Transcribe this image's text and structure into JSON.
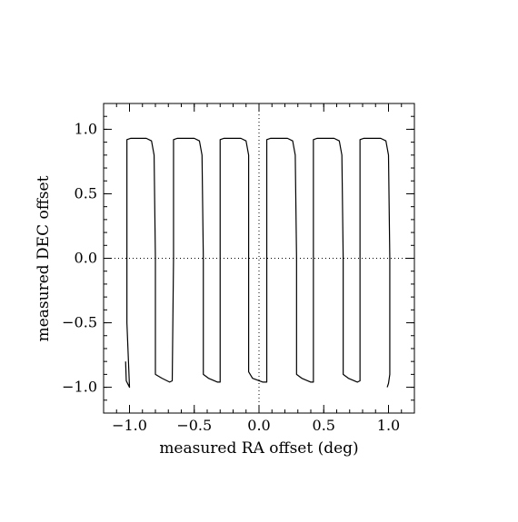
{
  "chart_data": {
    "type": "line",
    "title": "",
    "xlabel": "measured RA offset (deg)",
    "ylabel": "measured DEC offset",
    "xlim": [
      -1.2,
      1.2
    ],
    "ylim": [
      -1.2,
      1.2
    ],
    "x_ticks": [
      -1.0,
      -0.5,
      0.0,
      0.5,
      1.0
    ],
    "x_tick_labels": [
      "−1.0",
      "−0.5",
      "0.0",
      "0.5",
      "1.0"
    ],
    "y_ticks": [
      -1.0,
      -0.5,
      0.0,
      0.5,
      1.0
    ],
    "y_tick_labels": [
      "−1.0",
      "−0.5",
      "0.0",
      "0.5",
      "1.0"
    ],
    "x_minor_step": 0.1,
    "y_minor_step": 0.1,
    "grid": false,
    "reference_lines": [
      {
        "orientation": "vertical",
        "value": 0.0,
        "style": "dotted"
      },
      {
        "orientation": "horizontal",
        "value": 0.0,
        "style": "dotted"
      }
    ],
    "series": [
      {
        "style": "solid",
        "color": "#000000",
        "points": [
          [
            -1.03,
            -0.8
          ],
          [
            -1.025,
            -0.95
          ],
          [
            -1.0,
            -1.0
          ],
          [
            -1.02,
            -0.5
          ],
          [
            -1.02,
            0.0
          ],
          [
            -1.02,
            0.5
          ],
          [
            -1.02,
            0.92
          ],
          [
            -0.99,
            0.93
          ],
          [
            -0.87,
            0.93
          ],
          [
            -0.83,
            0.91
          ],
          [
            -0.81,
            0.8
          ],
          [
            -0.8,
            0.0
          ],
          [
            -0.8,
            -0.9
          ],
          [
            -0.75,
            -0.93
          ],
          [
            -0.69,
            -0.96
          ],
          [
            -0.67,
            -0.95
          ],
          [
            -0.66,
            0.0
          ],
          [
            -0.66,
            0.92
          ],
          [
            -0.63,
            0.93
          ],
          [
            -0.5,
            0.93
          ],
          [
            -0.46,
            0.91
          ],
          [
            -0.44,
            0.8
          ],
          [
            -0.43,
            0.0
          ],
          [
            -0.43,
            -0.9
          ],
          [
            -0.39,
            -0.93
          ],
          [
            -0.32,
            -0.96
          ],
          [
            -0.3,
            -0.96
          ],
          [
            -0.3,
            0.0
          ],
          [
            -0.3,
            0.92
          ],
          [
            -0.27,
            0.93
          ],
          [
            -0.14,
            0.93
          ],
          [
            -0.1,
            0.91
          ],
          [
            -0.08,
            0.8
          ],
          [
            -0.08,
            0.0
          ],
          [
            -0.08,
            -0.88
          ],
          [
            -0.05,
            -0.93
          ],
          [
            0.03,
            -0.96
          ],
          [
            0.06,
            -0.96
          ],
          [
            0.06,
            0.0
          ],
          [
            0.06,
            0.92
          ],
          [
            0.09,
            0.93
          ],
          [
            0.22,
            0.93
          ],
          [
            0.26,
            0.91
          ],
          [
            0.28,
            0.8
          ],
          [
            0.29,
            0.0
          ],
          [
            0.29,
            -0.9
          ],
          [
            0.33,
            -0.93
          ],
          [
            0.4,
            -0.96
          ],
          [
            0.42,
            -0.96
          ],
          [
            0.42,
            0.0
          ],
          [
            0.42,
            0.92
          ],
          [
            0.45,
            0.93
          ],
          [
            0.58,
            0.93
          ],
          [
            0.62,
            0.91
          ],
          [
            0.64,
            0.8
          ],
          [
            0.65,
            0.0
          ],
          [
            0.65,
            -0.9
          ],
          [
            0.69,
            -0.93
          ],
          [
            0.76,
            -0.96
          ],
          [
            0.78,
            -0.95
          ],
          [
            0.78,
            0.0
          ],
          [
            0.78,
            0.92
          ],
          [
            0.81,
            0.93
          ],
          [
            0.94,
            0.93
          ],
          [
            0.98,
            0.91
          ],
          [
            1.0,
            0.8
          ],
          [
            1.01,
            0.0
          ],
          [
            1.01,
            -0.9
          ],
          [
            1.0,
            -0.97
          ],
          [
            0.99,
            -1.0
          ]
        ]
      }
    ]
  }
}
